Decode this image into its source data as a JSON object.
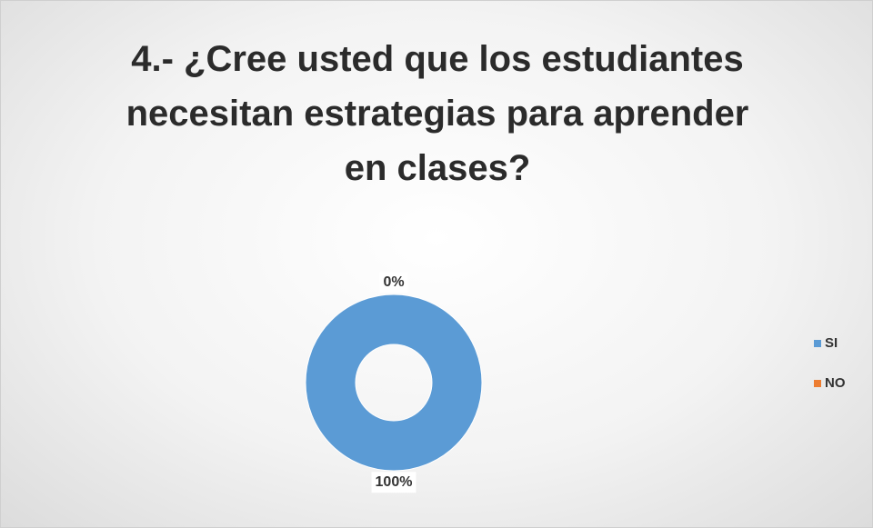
{
  "chart_data": {
    "type": "donut",
    "title": "4.- ¿Cree usted que los estudiantes necesitan estrategias para aprender en clases?",
    "categories": [
      "SI",
      "NO"
    ],
    "series": [
      {
        "values": [
          100,
          0
        ],
        "value_labels": [
          "100%",
          "0%"
        ],
        "colors": [
          "#5b9bd5",
          "#ed7d31"
        ]
      }
    ],
    "legend": "right"
  }
}
